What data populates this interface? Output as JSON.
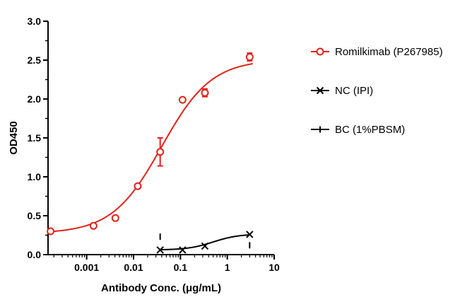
{
  "chart_data": {
    "type": "scatter",
    "xlabel": "Antibody Conc. (μg/mL)",
    "ylabel": "OD450",
    "xscale": "log",
    "xlim": [
      0.00015,
      10
    ],
    "ylim": [
      0,
      3.0
    ],
    "x_ticks": [
      {
        "value": 0.001,
        "label": "0.001"
      },
      {
        "value": 0.01,
        "label": "0.01"
      },
      {
        "value": 0.1,
        "label": "0.1"
      },
      {
        "value": 1,
        "label": "1"
      },
      {
        "value": 10,
        "label": "10"
      }
    ],
    "y_ticks": [
      {
        "value": 0,
        "label": "0.0"
      },
      {
        "value": 0.5,
        "label": "0.5"
      },
      {
        "value": 1.0,
        "label": "1.0"
      },
      {
        "value": 1.5,
        "label": "1.5"
      },
      {
        "value": 2.0,
        "label": "2.0"
      },
      {
        "value": 2.5,
        "label": "2.5"
      },
      {
        "value": 3.0,
        "label": "3.0"
      }
    ],
    "legend_position": "right",
    "series": [
      {
        "name": "Romilkimab (P267985)",
        "marker": "circle",
        "color": "#e2231a",
        "points": [
          {
            "x": 0.00017,
            "y": 0.3,
            "err": 0
          },
          {
            "x": 0.0014,
            "y": 0.37,
            "err": 0
          },
          {
            "x": 0.0041,
            "y": 0.47,
            "err": 0
          },
          {
            "x": 0.0123,
            "y": 0.88,
            "err": 0
          },
          {
            "x": 0.037,
            "y": 1.32,
            "err": 0.18
          },
          {
            "x": 0.111,
            "y": 1.99,
            "err": 0
          },
          {
            "x": 0.333,
            "y": 2.08,
            "err": 0.05
          },
          {
            "x": 3.0,
            "y": 2.54,
            "err": 0.05
          }
        ],
        "fit": {
          "bottom": 0.27,
          "top": 2.51,
          "ec50": 0.04,
          "hill": 0.82
        }
      },
      {
        "name": "NC (IPI)",
        "marker": "x",
        "color": "#000000",
        "points": [
          {
            "x": 0.037,
            "y": 0.06
          },
          {
            "x": 0.111,
            "y": 0.06
          },
          {
            "x": 0.333,
            "y": 0.11
          },
          {
            "x": 3.0,
            "y": 0.26
          }
        ],
        "fit": {
          "bottom": 0.06,
          "top": 0.265,
          "ec50": 0.5,
          "hill": 1.6,
          "xmin": 0.037,
          "xmax": 3.0
        }
      },
      {
        "name": "BC (1%PBSM)",
        "marker": "plus",
        "color": "#000000",
        "points": [
          {
            "x": 0.037,
            "y": 0.23
          },
          {
            "x": 3.0,
            "y": 0.12
          }
        ]
      }
    ]
  }
}
